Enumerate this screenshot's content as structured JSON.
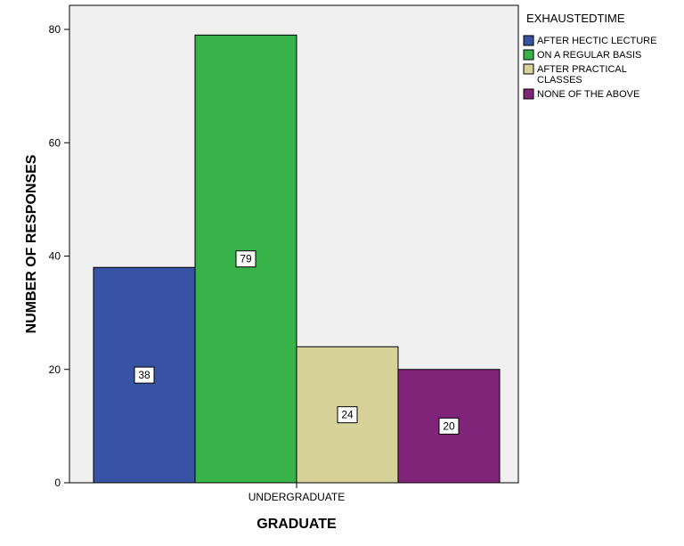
{
  "chart_data": {
    "type": "bar",
    "categories": [
      "UNDERGRADUATE"
    ],
    "series": [
      {
        "name": "AFTER HECTIC LECTURE",
        "values": [
          38
        ],
        "color": "#3953a4"
      },
      {
        "name": "ON A REGULAR BASIS",
        "values": [
          79
        ],
        "color": "#37b34a"
      },
      {
        "name_lines": [
          "AFTER PRACTICAL",
          "CLASSES"
        ],
        "values": [
          24
        ],
        "color": "#d6d29a"
      },
      {
        "name": "NONE OF THE ABOVE",
        "values": [
          20
        ],
        "color": "#7f2479"
      }
    ],
    "xlabel": "GRADUATE",
    "ylabel": "NUMBER OF RESPONSES",
    "ylim": [
      0,
      80
    ],
    "yticks": [
      0,
      20,
      40,
      60,
      80
    ],
    "legend_title": "EXHAUSTEDTIME",
    "legend_position": "right",
    "plot_background": "#f0f0f0",
    "grid": false
  }
}
